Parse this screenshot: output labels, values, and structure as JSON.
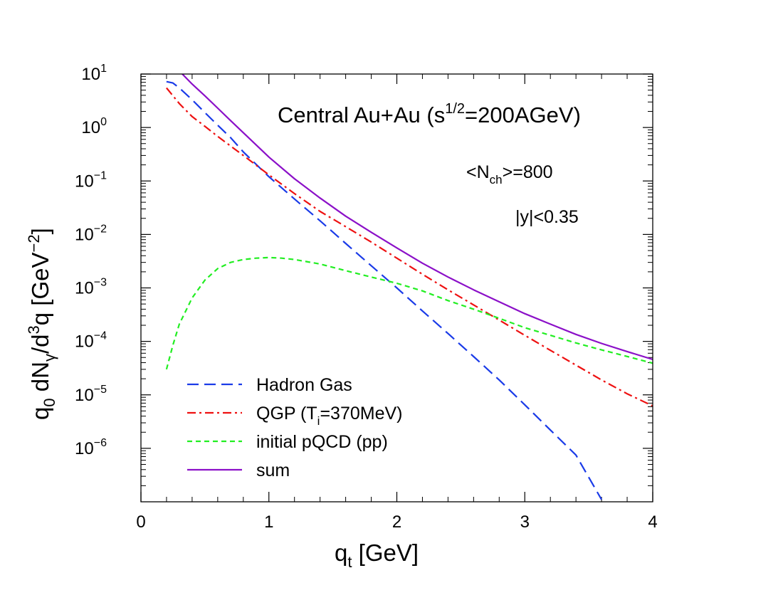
{
  "chart_data": {
    "type": "line",
    "xlabel": {
      "main": "q",
      "sub": "t",
      "rest": " [GeV]"
    },
    "ylabel": {
      "p1": "q",
      "s1": "0",
      "p2": " dN",
      "s2": "γ",
      "p3": "/d",
      "e3": "3",
      "p4": "q  [GeV",
      "e4": "−2",
      "p5": "]"
    },
    "xlim": [
      0,
      4
    ],
    "ylim": [
      1e-07,
      10
    ],
    "yscale": "log",
    "x_ticks": [
      "0",
      "1",
      "2",
      "3",
      "4"
    ],
    "y_ticks": [
      {
        "value": 10,
        "base": "10",
        "exp": "1"
      },
      {
        "value": 1,
        "base": "10",
        "exp": "0"
      },
      {
        "value": 0.1,
        "base": "10",
        "exp": "−1"
      },
      {
        "value": 0.01,
        "base": "10",
        "exp": "−2"
      },
      {
        "value": 0.001,
        "base": "10",
        "exp": "−3"
      },
      {
        "value": 0.0001,
        "base": "10",
        "exp": "−4"
      },
      {
        "value": 1e-05,
        "base": "10",
        "exp": "−5"
      },
      {
        "value": 1e-06,
        "base": "10",
        "exp": "−6"
      }
    ],
    "annotations": {
      "system": {
        "pre": "Central Au+Au (s",
        "sup": "1/2",
        "post": "=200AGeV)"
      },
      "nch": {
        "pre": "<N",
        "sub": "ch",
        "post": ">=800"
      },
      "rapidity": "|y|<0.35"
    },
    "legend_placement": "bottom-left",
    "series": [
      {
        "name": "Hadron Gas",
        "legend": {
          "pre": "Hadron Gas"
        },
        "color": "#1a3be8",
        "dash": "16,8",
        "x": [
          0.2,
          0.25,
          0.3,
          0.4,
          0.5,
          0.6,
          0.7,
          0.8,
          1.0,
          1.2,
          1.4,
          1.6,
          1.8,
          2.0,
          2.2,
          2.4,
          2.6,
          2.8,
          3.0,
          3.2,
          3.4,
          3.6
        ],
        "y": [
          7.2,
          6.8,
          5.5,
          3.3,
          1.9,
          1.1,
          0.65,
          0.35,
          0.12,
          0.046,
          0.018,
          0.0068,
          0.0026,
          0.001,
          0.00037,
          0.00014,
          5.2e-05,
          1.9e-05,
          6.5e-06,
          2.2e-06,
          7.5e-07,
          1.1e-07
        ]
      },
      {
        "name": "QGP (Ti=370MeV)",
        "legend": {
          "pre": "QGP (T",
          "sub": "i",
          "post": "=370MeV)"
        },
        "color": "#ee1111",
        "dash": "12,5,3,5",
        "x": [
          0.2,
          0.3,
          0.4,
          0.5,
          0.6,
          0.8,
          1.0,
          1.2,
          1.4,
          1.6,
          1.8,
          2.0,
          2.2,
          2.4,
          2.6,
          2.8,
          3.0,
          3.2,
          3.4,
          3.6,
          3.8,
          4.0
        ],
        "y": [
          5.5,
          2.8,
          1.6,
          1.05,
          0.68,
          0.3,
          0.13,
          0.058,
          0.027,
          0.014,
          0.0072,
          0.0036,
          0.0018,
          0.00092,
          0.00048,
          0.00025,
          0.00013,
          6.8e-05,
          3.6e-05,
          1.9e-05,
          1.05e-05,
          6.2e-06
        ]
      },
      {
        "name": "initial pQCD (pp)",
        "legend": {
          "pre": "initial pQCD (pp)"
        },
        "color": "#22ee22",
        "dash": "7,5",
        "x": [
          0.2,
          0.25,
          0.3,
          0.4,
          0.5,
          0.6,
          0.7,
          0.8,
          0.9,
          1.0,
          1.1,
          1.2,
          1.4,
          1.6,
          1.8,
          2.0,
          2.2,
          2.4,
          2.6,
          2.8,
          3.0,
          3.2,
          3.4,
          3.6,
          3.8,
          4.0
        ],
        "y": [
          3e-05,
          8.5e-05,
          0.00021,
          0.00065,
          0.0014,
          0.0023,
          0.003,
          0.0034,
          0.0036,
          0.0037,
          0.0036,
          0.0034,
          0.0028,
          0.0021,
          0.0016,
          0.00122,
          0.00088,
          0.00058,
          0.0004,
          0.00027,
          0.00018,
          0.00013,
          9.35e-05,
          6.93e-05,
          5.22e-05,
          3.9e-05
        ]
      },
      {
        "name": "sum",
        "legend": {
          "pre": "sum"
        },
        "color": "#8b10c8",
        "dash": "",
        "x": [
          0.32,
          0.4,
          0.5,
          0.6,
          0.7,
          0.8,
          1.0,
          1.2,
          1.4,
          1.6,
          1.8,
          2.0,
          2.2,
          2.4,
          2.6,
          2.8,
          3.0,
          3.2,
          3.4,
          3.6,
          3.8,
          4.0
        ],
        "y": [
          10.2,
          6.5,
          3.9,
          2.3,
          1.35,
          0.8,
          0.28,
          0.11,
          0.048,
          0.022,
          0.011,
          0.0056,
          0.0029,
          0.0016,
          0.00092,
          0.00055,
          0.00033,
          0.00021,
          0.000135,
          9.15e-05,
          6.45e-05,
          4.6e-05
        ]
      }
    ]
  }
}
